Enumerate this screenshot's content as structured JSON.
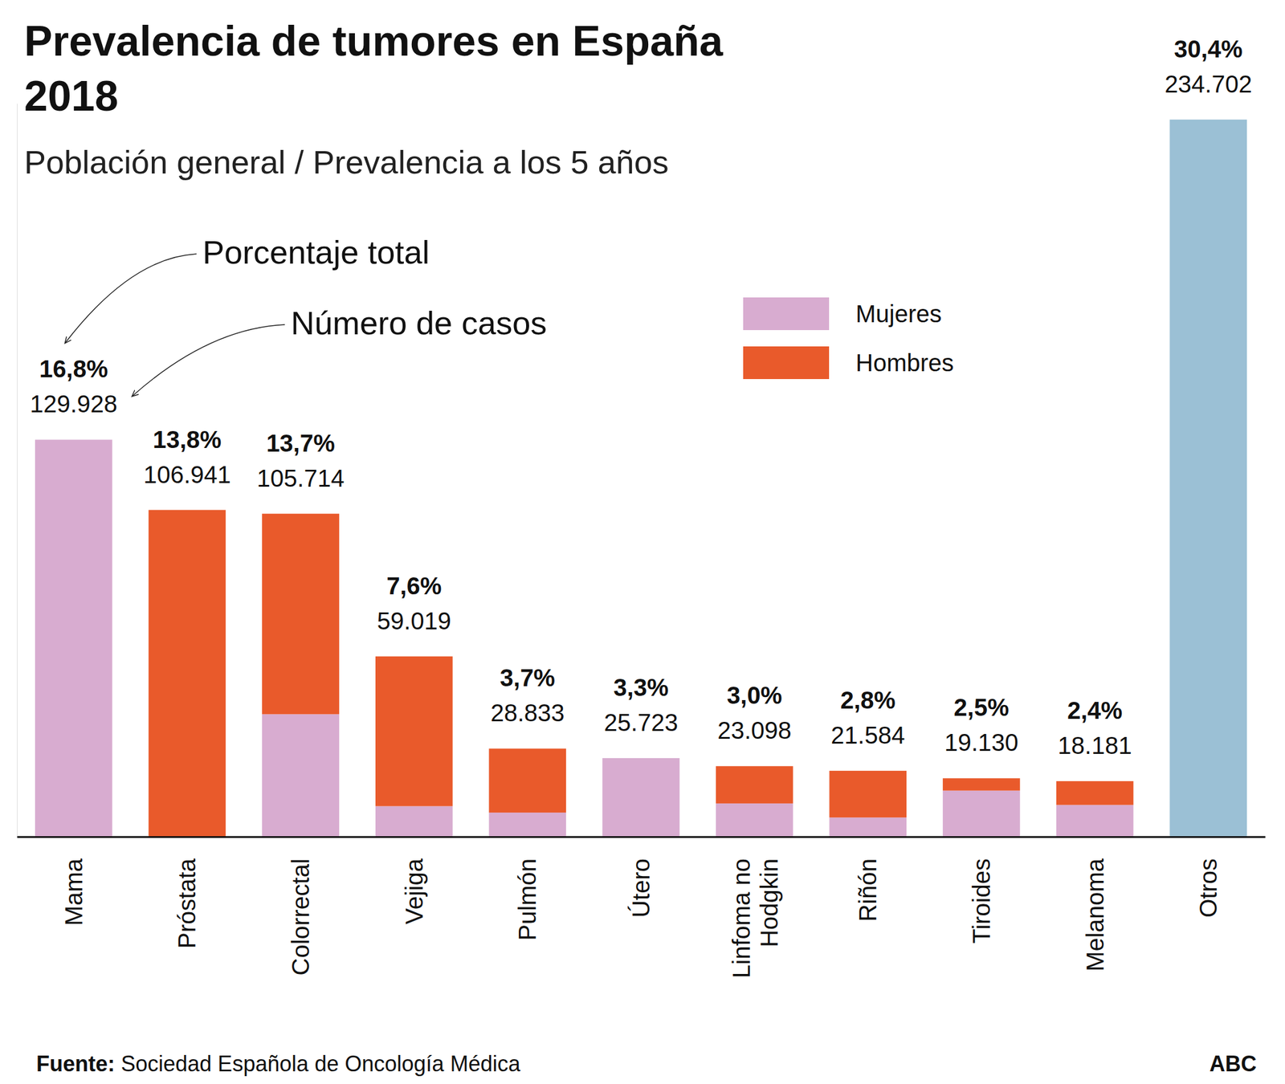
{
  "chart_data": {
    "type": "bar",
    "title": "Prevalencia de tumores en España 2018",
    "subtitle": "Población general / Prevalencia a los 5 años",
    "annotations": [
      {
        "text": "Porcentaje total"
      },
      {
        "text": "Número de casos"
      }
    ],
    "source_label": "Fuente:",
    "source": "Sociedad Española de Oncología Médica",
    "credit": "ABC",
    "categories": [
      "Mama",
      "Próstata",
      "Colorrectal",
      "Vejiga",
      "Pulmón",
      "Útero",
      "Linfoma no Hodgkin",
      "Riñón",
      "Tiroides",
      "Melanoma",
      "Otros"
    ],
    "series": [
      {
        "name": "Mujeres",
        "color": "#d8acd0",
        "values": [
          129928,
          null,
          40100,
          10000,
          7900,
          25723,
          10900,
          6300,
          15100,
          10400,
          null
        ]
      },
      {
        "name": "Hombres",
        "color": "#e95a2b",
        "values": [
          null,
          106941,
          65614,
          49019,
          20933,
          null,
          12198,
          15284,
          4030,
          7781,
          null
        ]
      },
      {
        "color": "#9bc0d5",
        "values": [
          null,
          null,
          null,
          null,
          null,
          null,
          null,
          null,
          null,
          null,
          234702
        ]
      }
    ],
    "totals": [
      129928,
      106941,
      105714,
      59019,
      28833,
      25723,
      23098,
      21584,
      19130,
      18181,
      234702
    ],
    "total_labels": [
      "129.928",
      "106.941",
      "105.714",
      "59.019",
      "28.833",
      "25.723",
      "23.098",
      "21.584",
      "19.130",
      "18.181",
      "234.702"
    ],
    "percentages": [
      16.8,
      13.8,
      13.7,
      7.6,
      3.7,
      3.3,
      3.0,
      2.8,
      2.5,
      2.4,
      30.4
    ],
    "percentage_labels": [
      "16,8%",
      "13,8%",
      "13,7%",
      "7,6%",
      "3,7%",
      "3,3%",
      "3,0%",
      "2,8%",
      "2,5%",
      "2,4%",
      "30,4%"
    ],
    "stacked": true,
    "legend": "top-right",
    "tick_labels": "x",
    "ylim": [
      0,
      240000
    ],
    "yticks": [
      0
    ]
  }
}
